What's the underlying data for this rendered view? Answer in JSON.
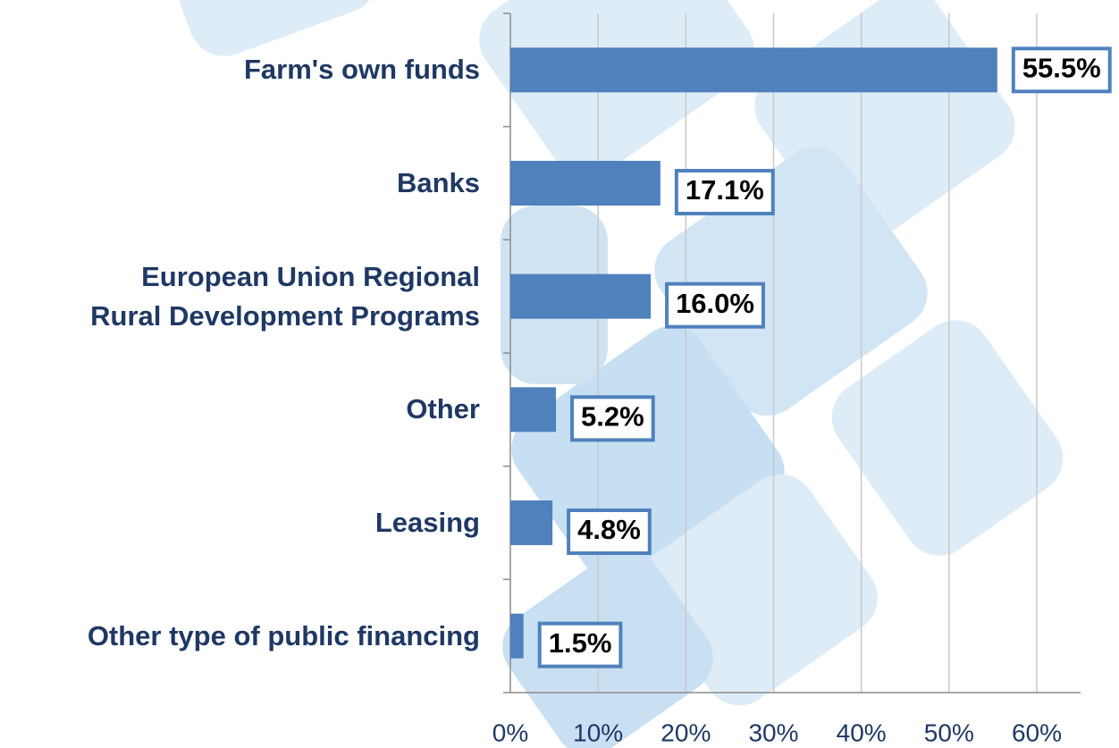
{
  "chart_data": {
    "type": "bar",
    "orientation": "horizontal",
    "categories": [
      "Farm's own funds",
      "Banks",
      "European Union Regional\nRural Development Programs",
      "Other",
      "Leasing",
      "Other type of public financing"
    ],
    "values": [
      55.5,
      17.1,
      16.0,
      5.2,
      4.8,
      1.5
    ],
    "value_labels": [
      "55.5%",
      "17.1%",
      "16.0%",
      "5.2%",
      "4.8%",
      "1.5%"
    ],
    "color": "#4f81bd",
    "xlim": [
      0,
      65
    ],
    "xticks": [
      {
        "value": 0,
        "label": "0%"
      },
      {
        "value": 10,
        "label": "10%"
      },
      {
        "value": 20,
        "label": "20%"
      },
      {
        "value": 30,
        "label": "30%"
      },
      {
        "value": 40,
        "label": "40%"
      },
      {
        "value": 50,
        "label": "50%"
      },
      {
        "value": 60,
        "label": "60%"
      }
    ],
    "grid": true
  }
}
